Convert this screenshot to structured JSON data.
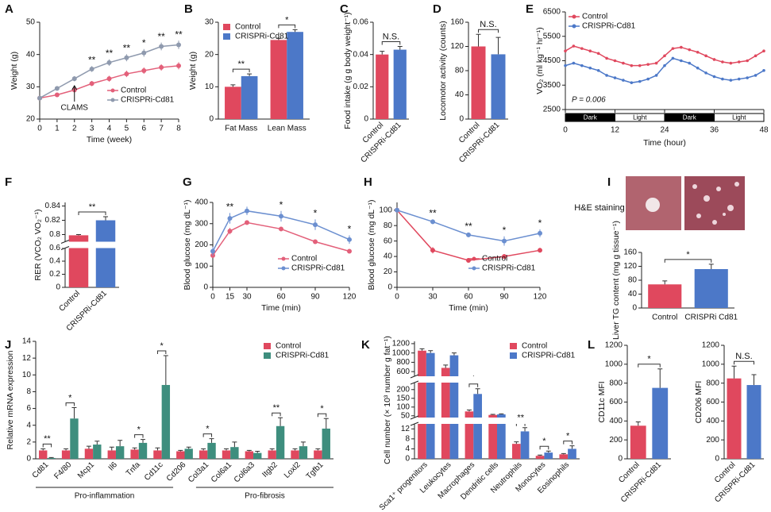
{
  "chart_data": [
    {
      "panel": "A",
      "type": "line",
      "xlabel": "Time (week)",
      "ylabel": "Weight (g)",
      "x": [
        0,
        1,
        2,
        3,
        4,
        5,
        6,
        7,
        8
      ],
      "xlim": [
        0,
        8
      ],
      "xticks": [
        0,
        1,
        2,
        3,
        4,
        5,
        6,
        7,
        8
      ],
      "ylim": [
        20,
        50
      ],
      "yticks": [
        20,
        30,
        40,
        50
      ],
      "legend": "bottom-right",
      "callout": {
        "text": "CLAMS",
        "x": 2
      },
      "series": [
        {
          "name": "Control",
          "color": "#e3607a",
          "values": [
            26.5,
            27.5,
            29,
            31,
            32.5,
            34,
            35,
            36,
            36.5
          ],
          "errors": [
            0.6,
            0.6,
            0.7,
            0.8,
            0.9,
            1,
            1,
            1,
            1.1
          ]
        },
        {
          "name": "CRISPRi-Cd81",
          "color": "#8f9aae",
          "values": [
            26.5,
            29.5,
            32.5,
            35.5,
            37.5,
            39,
            40.5,
            42.5,
            43
          ],
          "errors": [
            0.6,
            0.7,
            0.8,
            0.9,
            1,
            1.1,
            1.2,
            1.2,
            1.3
          ]
        }
      ],
      "annotations": [
        {
          "x": 3,
          "label": "**"
        },
        {
          "x": 4,
          "label": "**"
        },
        {
          "x": 5,
          "label": "**"
        },
        {
          "x": 6,
          "label": "*"
        },
        {
          "x": 7,
          "label": "**"
        },
        {
          "x": 8,
          "label": "**"
        }
      ]
    },
    {
      "panel": "B",
      "type": "bar",
      "ylabel": "Weight (g)",
      "categories": [
        "Fat Mass",
        "Lean Mass"
      ],
      "ylim": [
        0,
        30
      ],
      "yticks": [
        0,
        10,
        20,
        30
      ],
      "legend": "top-left",
      "series": [
        {
          "name": "Control",
          "color": "#e0485e",
          "values": [
            10,
            24.5
          ],
          "errors": [
            0.6,
            0.5
          ]
        },
        {
          "name": "CRISPRi-Cd81",
          "color": "#4c78c8",
          "values": [
            13.3,
            27
          ],
          "errors": [
            0.7,
            0.7
          ]
        }
      ],
      "annotations": [
        {
          "category": "Fat Mass",
          "label": "**"
        },
        {
          "category": "Lean Mass",
          "label": "*"
        }
      ]
    },
    {
      "panel": "C",
      "type": "bar",
      "ylabel": "Food intake (g g body weight⁻¹)",
      "categories": [
        "Control",
        "CRISPRi-Cd81"
      ],
      "rotate_labels": true,
      "ylim": [
        0,
        0.06
      ],
      "yticks": [
        0,
        0.02,
        0.04,
        0.06
      ],
      "values": [
        0.04,
        0.043
      ],
      "errors": [
        0.002,
        0.002
      ],
      "colors": [
        "#e0485e",
        "#4c78c8"
      ],
      "annotations": [
        {
          "label": "N.S."
        }
      ]
    },
    {
      "panel": "D",
      "type": "bar",
      "ylabel": "Locomotor activity (counts)",
      "categories": [
        "Control",
        "CRISPRi-Cd81"
      ],
      "rotate_labels": true,
      "ylim": [
        0,
        160
      ],
      "yticks": [
        0,
        40,
        80,
        120,
        160
      ],
      "values": [
        120,
        107
      ],
      "errors": [
        20,
        28
      ],
      "colors": [
        "#e0485e",
        "#4c78c8"
      ],
      "annotations": [
        {
          "label": "N.S."
        }
      ]
    },
    {
      "panel": "E",
      "type": "line",
      "xlabel": "Time (hour)",
      "ylabel": "VO₂ (ml kg⁻¹ hr⁻¹)",
      "x": [
        0,
        2,
        4,
        6,
        8,
        10,
        12,
        14,
        16,
        18,
        20,
        22,
        24,
        26,
        28,
        30,
        32,
        34,
        36,
        38,
        40,
        42,
        44,
        46,
        48
      ],
      "xlim": [
        0,
        48
      ],
      "xticks": [
        0,
        12,
        24,
        36,
        48
      ],
      "ylim": [
        2500,
        6500
      ],
      "yticks": [
        2500,
        3500,
        4500,
        5500,
        6500
      ],
      "legend": "top-left",
      "note": "P = 0.006",
      "periods": [
        {
          "label": "Dark",
          "from": 0,
          "to": 12,
          "color": "#000000"
        },
        {
          "label": "Light",
          "from": 12,
          "to": 24,
          "color": "#ffffff"
        },
        {
          "label": "Dark",
          "from": 24,
          "to": 36,
          "color": "#000000"
        },
        {
          "label": "Light",
          "from": 36,
          "to": 48,
          "color": "#ffffff"
        }
      ],
      "series": [
        {
          "name": "Control",
          "color": "#e0485e",
          "values": [
            4900,
            5100,
            5000,
            4900,
            4800,
            4600,
            4500,
            4400,
            4300,
            4300,
            4350,
            4400,
            4700,
            5000,
            5050,
            4950,
            4850,
            4700,
            4550,
            4450,
            4400,
            4450,
            4500,
            4700,
            4900
          ]
        },
        {
          "name": "CRISPRi-Cd81",
          "color": "#4c78c8",
          "values": [
            4300,
            4400,
            4300,
            4200,
            4100,
            3900,
            3800,
            3700,
            3600,
            3650,
            3750,
            3900,
            4300,
            4600,
            4500,
            4400,
            4200,
            4000,
            3850,
            3750,
            3700,
            3750,
            3800,
            3900,
            4100
          ]
        }
      ]
    },
    {
      "panel": "F",
      "type": "bar",
      "ylabel": "RER (VCO₂ VO₂⁻¹)",
      "categories": [
        "Control",
        "CRISPRi-Cd81"
      ],
      "rotate_labels": true,
      "ysegments": [
        [
          0,
          0.6
        ],
        [
          0.79,
          0.845
        ]
      ],
      "yticks": [
        0,
        0.2,
        0.4,
        0.6,
        0.8,
        0.82,
        0.84
      ],
      "values": [
        0.799,
        0.82
      ],
      "errors": [
        0.001,
        0.005
      ],
      "colors": [
        "#e0485e",
        "#4c78c8"
      ],
      "annotations": [
        {
          "label": "**"
        }
      ]
    },
    {
      "panel": "G",
      "type": "line",
      "xlabel": "Time (min)",
      "ylabel": "Blood glucose (mg dL⁻¹)",
      "x": [
        0,
        15,
        30,
        60,
        90,
        120
      ],
      "xlim": [
        0,
        120
      ],
      "xticks": [
        0,
        15,
        30,
        60,
        90,
        120
      ],
      "ylim": [
        0,
        400
      ],
      "yticks": [
        0,
        100,
        200,
        300,
        400
      ],
      "legend": "bottom-right",
      "series": [
        {
          "name": "Control",
          "color": "#e3607a",
          "values": [
            150,
            265,
            305,
            275,
            215,
            170
          ],
          "errors": [
            10,
            15,
            10,
            10,
            10,
            8
          ]
        },
        {
          "name": "CRISPRi-Cd81",
          "color": "#6b8fd0",
          "values": [
            170,
            325,
            360,
            335,
            295,
            225
          ],
          "errors": [
            20,
            25,
            20,
            25,
            25,
            20
          ]
        }
      ],
      "annotations": [
        {
          "x": 15,
          "label": "**"
        },
        {
          "x": 60,
          "label": "*"
        },
        {
          "x": 90,
          "label": "*"
        },
        {
          "x": 120,
          "label": "*"
        }
      ]
    },
    {
      "panel": "H",
      "type": "line",
      "xlabel": "Time (min)",
      "ylabel": "Blood glucose (mg dL⁻¹)",
      "x": [
        0,
        30,
        60,
        90,
        120
      ],
      "xlim": [
        0,
        120
      ],
      "xticks": [
        0,
        30,
        60,
        90,
        120
      ],
      "ylim": [
        0,
        110
      ],
      "yticks": [
        0,
        20,
        40,
        60,
        80,
        100
      ],
      "legend": "bottom-right",
      "series": [
        {
          "name": "Control",
          "color": "#e0485e",
          "values": [
            100,
            48,
            35,
            40,
            48
          ],
          "errors": [
            2,
            4,
            3,
            3,
            3
          ]
        },
        {
          "name": "CRISPRi-Cd81",
          "color": "#6b8fd0",
          "values": [
            100,
            85,
            68,
            60,
            70
          ],
          "errors": [
            2,
            3,
            3,
            6,
            5
          ]
        }
      ],
      "annotations": [
        {
          "x": 30,
          "label": "**"
        },
        {
          "x": 60,
          "label": "**"
        },
        {
          "x": 90,
          "label": "*"
        },
        {
          "x": 120,
          "label": "*"
        }
      ]
    },
    {
      "panel": "I",
      "type": "bar",
      "image_label": "H&E staining",
      "ylabel": "Liver TG content (mg g tissue⁻¹)",
      "categories": [
        "Control",
        "CRISPRi Cd81"
      ],
      "ylim": [
        0,
        160
      ],
      "yticks": [
        0,
        40,
        80,
        120,
        160
      ],
      "values": [
        68,
        112
      ],
      "errors": [
        10,
        14
      ],
      "colors": [
        "#e0485e",
        "#4c78c8"
      ],
      "annotations": [
        {
          "label": "*"
        }
      ]
    },
    {
      "panel": "J",
      "type": "bar",
      "ylabel": "Relative mRNA expression",
      "categories": [
        "Cd81",
        "F4/80",
        "Mcp1",
        "Il6",
        "Tnfa",
        "Cd11c",
        "Cd206",
        "Col3a1",
        "Col6a1",
        "Col6a3",
        "Itgb2",
        "Loxl2",
        "Tgfb1"
      ],
      "rotate_labels": true,
      "ylim": [
        0,
        14
      ],
      "yticks": [
        0,
        2,
        4,
        6,
        8,
        10,
        12,
        14
      ],
      "legend": "top-right",
      "groups": [
        {
          "label": "Pro-inflammation",
          "first": "Cd81",
          "last": "Cd11c"
        },
        {
          "label": "Pro-fibrosis",
          "first": "Col3a1",
          "last": "Tgfb1"
        }
      ],
      "series": [
        {
          "name": "Control",
          "color": "#e0485e",
          "values": [
            1,
            1,
            1.2,
            1,
            1.1,
            1,
            0.9,
            1,
            1,
            0.9,
            1,
            1,
            1
          ],
          "errors": [
            0.2,
            0.2,
            0.3,
            0.4,
            0.2,
            0.3,
            0.1,
            0.2,
            0.2,
            0.1,
            0.2,
            0.2,
            0.2
          ]
        },
        {
          "name": "CRISPRi-Cd81",
          "color": "#3e8e7e",
          "values": [
            0.1,
            4.8,
            1.7,
            1.5,
            1.9,
            8.8,
            1.2,
            1.9,
            1.4,
            0.7,
            3.9,
            1.5,
            3.6
          ],
          "errors": [
            0.05,
            1.3,
            0.4,
            0.7,
            0.4,
            3.5,
            0.2,
            0.5,
            0.6,
            0.2,
            1,
            0.5,
            1.2
          ]
        }
      ],
      "annotations": [
        {
          "category": "Cd81",
          "label": "**"
        },
        {
          "category": "F4/80",
          "label": "*"
        },
        {
          "category": "Tnfa",
          "label": "*"
        },
        {
          "category": "Cd11c",
          "label": "*"
        },
        {
          "category": "Col3a1",
          "label": "*"
        },
        {
          "category": "Itgb2",
          "label": "**"
        },
        {
          "category": "Tgfb1",
          "label": "*"
        }
      ]
    },
    {
      "panel": "K",
      "type": "bar",
      "ylabel": "Cell number (× 10³ number g fat⁻¹)",
      "categories": [
        "Sca1⁺ progenitors",
        "Leukocytes",
        "Macrophages",
        "Dendritic cells",
        "Neutrophils",
        "Monocytes",
        "Eosinophils"
      ],
      "rotate_labels": true,
      "ysegments": [
        [
          0,
          14
        ],
        [
          40,
          240
        ],
        [
          500,
          1250
        ]
      ],
      "yticks": [
        0,
        4,
        8,
        12,
        50,
        100,
        150,
        200,
        600,
        800,
        1000,
        1200
      ],
      "legend": "top-right",
      "series": [
        {
          "name": "Control",
          "color": "#e0485e",
          "values": [
            1050,
            680,
            75,
            55,
            6,
            1.2,
            1.8
          ],
          "errors": [
            40,
            60,
            8,
            3,
            0.8,
            0.3,
            0.3
          ]
        },
        {
          "name": "CRISPRi-Cd81",
          "color": "#4c78c8",
          "values": [
            1000,
            950,
            175,
            58,
            11,
            2.5,
            4
          ],
          "errors": [
            50,
            50,
            30,
            3,
            1.5,
            0.6,
            1.2
          ]
        }
      ],
      "annotations": [
        {
          "category": "Macrophages",
          "label": "*"
        },
        {
          "category": "Neutrophils",
          "label": "**"
        },
        {
          "category": "Monocytes",
          "label": "*"
        },
        {
          "category": "Eosinophils",
          "label": "*"
        }
      ]
    },
    {
      "panel": "L",
      "type": "bar",
      "ylabel": "CD11c MFI",
      "categories": [
        "Control",
        "CRISPRi-Cd81"
      ],
      "rotate_labels": true,
      "ylim": [
        0,
        1200
      ],
      "yticks": [
        0,
        200,
        400,
        600,
        800,
        1000,
        1200
      ],
      "values": [
        350,
        750
      ],
      "errors": [
        40,
        200
      ],
      "colors": [
        "#e0485e",
        "#4c78c8"
      ],
      "annotations": [
        {
          "label": "*"
        }
      ]
    },
    {
      "type": "bar",
      "ylabel": "CD206 MFI",
      "categories": [
        "Control",
        "CRISPRi-Cd81"
      ],
      "rotate_labels": true,
      "ylim": [
        0,
        1200
      ],
      "yticks": [
        0,
        200,
        400,
        600,
        800,
        1000,
        1200
      ],
      "values": [
        850,
        780
      ],
      "errors": [
        130,
        110
      ],
      "colors": [
        "#e0485e",
        "#4c78c8"
      ],
      "annotations": [
        {
          "label": "N.S."
        }
      ]
    }
  ]
}
